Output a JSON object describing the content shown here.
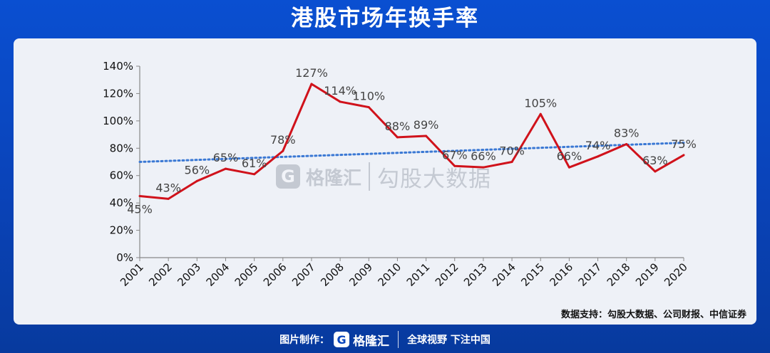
{
  "header": {
    "title": "港股市场年换手率"
  },
  "chart_data": {
    "type": "line",
    "title": "港股市场年换手率",
    "x": [
      "2001",
      "2002",
      "2003",
      "2004",
      "2005",
      "2006",
      "2007",
      "2008",
      "2009",
      "2010",
      "2011",
      "2012",
      "2013",
      "2014",
      "2015",
      "2016",
      "2017",
      "2018",
      "2019",
      "2020"
    ],
    "series": [
      {
        "values": [
          45,
          43,
          56,
          65,
          61,
          78,
          127,
          114,
          110,
          88,
          89,
          67,
          66,
          70,
          105,
          66,
          74,
          83,
          63,
          75
        ],
        "color": "#d0121b"
      }
    ],
    "data_labels": [
      "45%",
      "43%",
      "56%",
      "65%",
      "61%",
      "78%",
      "127%",
      "114%",
      "110%",
      "88%",
      "89%",
      "67%",
      "66%",
      "70%",
      "105%",
      "66%",
      "74%",
      "83%",
      "63%",
      "75%"
    ],
    "trendline": {
      "style": "dotted",
      "color": "#3a78d4",
      "start": 70,
      "end": 84
    },
    "ylim": [
      0,
      140
    ],
    "y_ticks": [
      "0%",
      "20%",
      "40%",
      "60%",
      "80%",
      "100%",
      "120%",
      "140%"
    ],
    "y_tick_values": [
      0,
      20,
      40,
      60,
      80,
      100,
      120,
      140
    ],
    "grid": false,
    "legend": "none",
    "xlabel": "",
    "ylabel": ""
  },
  "source": {
    "text": "数据支持：勾股大数据、公司财报、中信证券"
  },
  "watermark": {
    "logo_letter": "G",
    "brand": "格隆汇",
    "text": "勾股大数据"
  },
  "footer": {
    "made_by": "图片制作：",
    "logo_letter": "G",
    "brand": "格隆汇",
    "slogan": "全球视野 下注中国"
  }
}
